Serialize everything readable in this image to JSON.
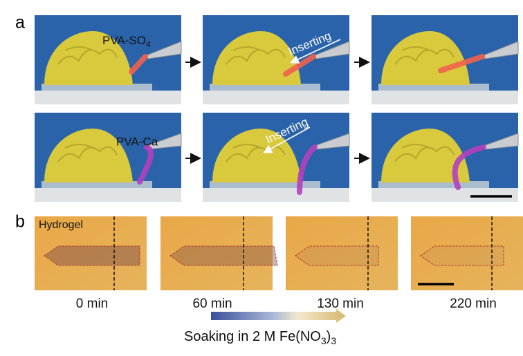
{
  "panel_a": {
    "label": "a",
    "top_row": {
      "gel_label": [
        "PVA-SO",
        "4"
      ],
      "arrow_label": "Inserting"
    },
    "bottom_row": {
      "gel_label": "PVA-Ca",
      "arrow_label": "Inserting"
    }
  },
  "panel_b": {
    "label": "b",
    "sample_label": "Hydrogel",
    "times": [
      "0 min",
      "60 min",
      "130 min",
      "220 min"
    ],
    "caption": [
      "Soaking in 2 M Fe(NO",
      "3",
      ")",
      "3"
    ]
  }
}
